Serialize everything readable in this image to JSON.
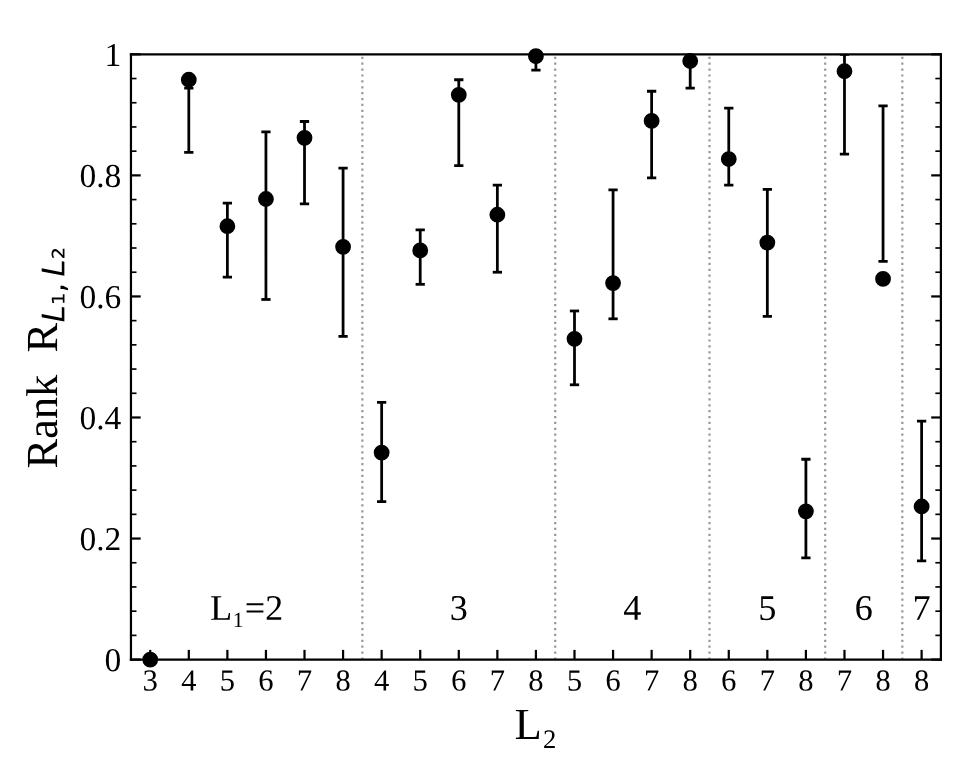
{
  "chart_data": {
    "type": "scatter",
    "xlabel": "L₂",
    "ylabel": "Rank  R$_{L₁,L₂}$",
    "categories": [
      "3",
      "4",
      "5",
      "6",
      "7",
      "8",
      "4",
      "5",
      "6",
      "7",
      "8",
      "5",
      "6",
      "7",
      "8",
      "6",
      "7",
      "8",
      "7",
      "8",
      "8"
    ],
    "series": [
      {
        "color": "#000000",
        "marker": "circle",
        "values": [
          0.0,
          0.958,
          0.716,
          0.761,
          0.862,
          0.682,
          0.342,
          0.676,
          0.933,
          0.735,
          0.997,
          0.53,
          0.622,
          0.89,
          0.989,
          0.827,
          0.689,
          0.245,
          0.972,
          0.629,
          0.253
        ],
        "errors": [
          null,
          [
            0.838,
            0.944
          ],
          [
            0.632,
            0.754
          ],
          [
            0.595,
            0.872
          ],
          [
            0.753,
            0.889
          ],
          [
            0.534,
            0.812
          ],
          [
            0.261,
            0.425
          ],
          [
            0.62,
            0.71
          ],
          [
            0.816,
            0.958
          ],
          [
            0.64,
            0.784
          ],
          [
            0.974,
            1.0
          ],
          [
            0.454,
            0.576
          ],
          [
            0.563,
            0.776
          ],
          [
            0.796,
            0.939
          ],
          [
            0.944,
            0.999
          ],
          [
            0.784,
            0.911
          ],
          [
            0.567,
            0.777
          ],
          [
            0.168,
            0.331
          ],
          [
            0.835,
            1.0
          ],
          [
            0.658,
            0.915
          ],
          [
            0.163,
            0.394
          ]
        ]
      }
    ],
    "ylim": [
      0,
      1
    ],
    "yticks": [
      0,
      0.2,
      0.4,
      0.6,
      0.8,
      1
    ],
    "grid": false,
    "legend": false,
    "annotations": [
      "L₁=2",
      "3",
      "4",
      "5",
      "6",
      "7"
    ]
  }
}
